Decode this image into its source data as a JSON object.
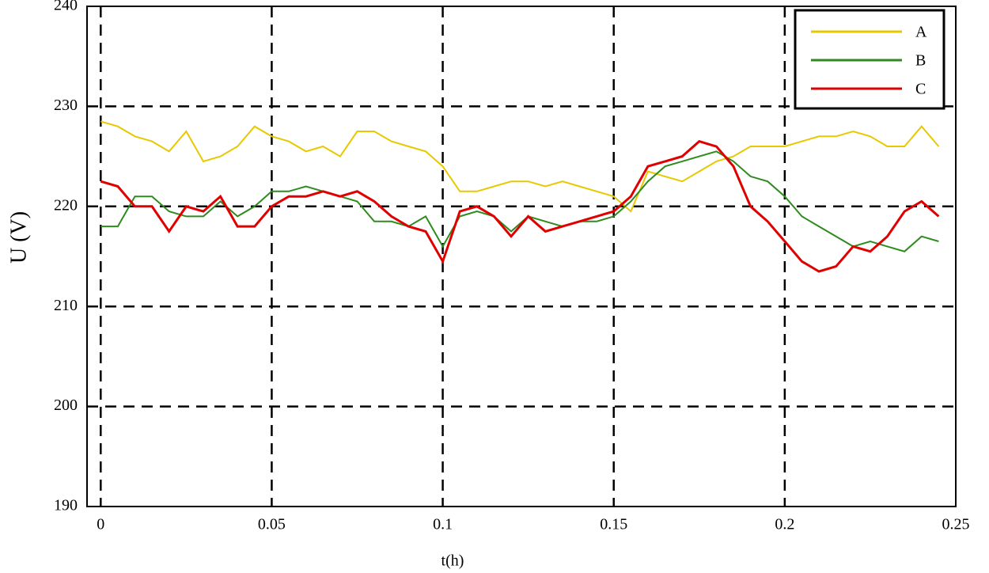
{
  "chart_data": {
    "type": "line",
    "xlabel": "t(h)",
    "ylabel": "U (V)",
    "x": [
      0,
      0.005,
      0.01,
      0.015,
      0.02,
      0.025,
      0.03,
      0.035,
      0.04,
      0.045,
      0.05,
      0.055,
      0.06,
      0.065,
      0.07,
      0.075,
      0.08,
      0.085,
      0.09,
      0.095,
      0.1,
      0.105,
      0.11,
      0.115,
      0.12,
      0.125,
      0.13,
      0.135,
      0.14,
      0.145,
      0.15,
      0.155,
      0.16,
      0.165,
      0.17,
      0.175,
      0.18,
      0.185,
      0.19,
      0.195,
      0.2,
      0.205,
      0.21,
      0.215,
      0.22,
      0.225,
      0.23,
      0.235,
      0.24,
      0.245
    ],
    "series": [
      {
        "name": "A",
        "color": "#e8c800",
        "values": [
          228.5,
          228,
          227,
          226.5,
          225.5,
          227.5,
          224.5,
          225,
          226,
          228,
          227,
          226.5,
          225.5,
          226,
          225,
          227.5,
          227.5,
          226.5,
          226,
          225.5,
          224,
          221.5,
          221.5,
          222,
          222.5,
          222.5,
          222,
          222.5,
          222,
          221.5,
          221,
          219.5,
          223.5,
          223,
          222.5,
          223.5,
          224.5,
          225,
          226,
          226,
          226,
          226.5,
          227,
          227,
          227.5,
          227,
          226,
          226,
          228,
          226
        ]
      },
      {
        "name": "B",
        "color": "#2e8b1e",
        "values": [
          218,
          218,
          221,
          221,
          219.5,
          219,
          219,
          220.5,
          219,
          220,
          221.5,
          221.5,
          222,
          221.5,
          221,
          220.5,
          218.5,
          218.5,
          218,
          219,
          216,
          219,
          219.5,
          219,
          217.5,
          219,
          218.5,
          218,
          218.5,
          218.5,
          219,
          220.5,
          222.5,
          224,
          224.5,
          225,
          225.5,
          224.5,
          223,
          222.5,
          221,
          219,
          218,
          217,
          216,
          216.5,
          216,
          215.5,
          217,
          216.5
        ]
      },
      {
        "name": "C",
        "color": "#e00000",
        "values": [
          222.5,
          222,
          220,
          220,
          217.5,
          220,
          219.5,
          221,
          218,
          218,
          220,
          221,
          221,
          221.5,
          221,
          221.5,
          220.5,
          219,
          218,
          217.5,
          214.5,
          219.5,
          220,
          219,
          217,
          219,
          217.5,
          218,
          218.5,
          219,
          219.5,
          221,
          224,
          224.5,
          225,
          226.5,
          226,
          224,
          220,
          218.5,
          216.5,
          214.5,
          213.5,
          214,
          216,
          215.5,
          217,
          219.5,
          220.5,
          219
        ]
      }
    ],
    "xlim": [
      -0.004,
      0.25
    ],
    "ylim": [
      190,
      240
    ],
    "xticks": [
      0,
      0.05,
      0.1,
      0.15,
      0.2,
      0.25
    ],
    "yticks": [
      190,
      200,
      210,
      220,
      230,
      240
    ],
    "grid": true,
    "legend": "upper right"
  }
}
